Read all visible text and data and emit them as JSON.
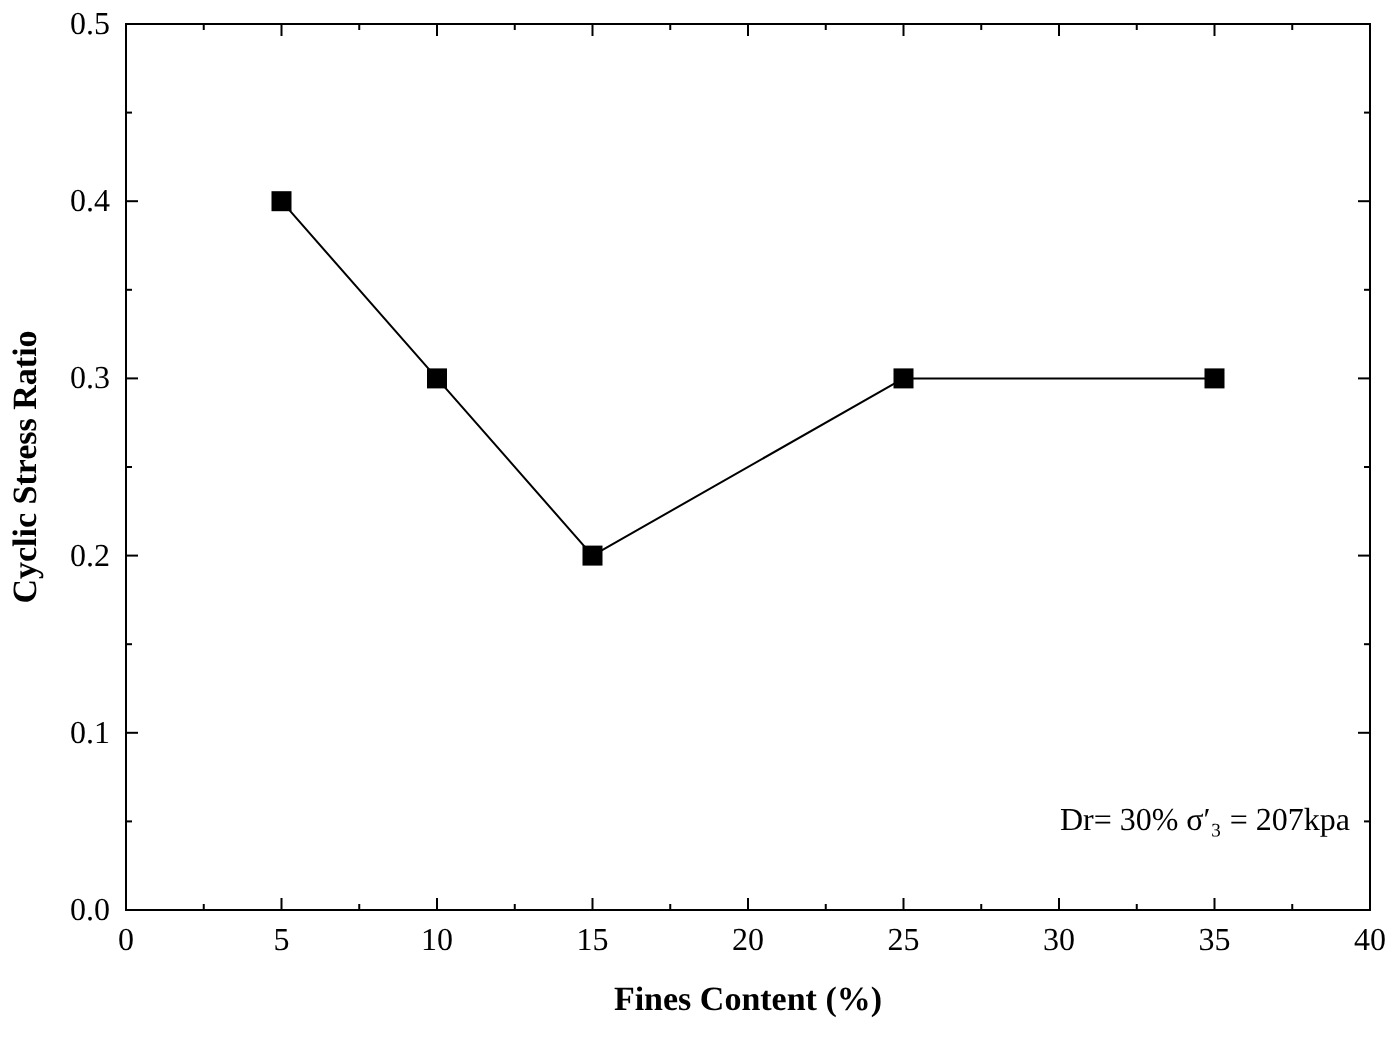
{
  "chart_data": {
    "type": "line",
    "xlabel": "Fines Content (%)",
    "ylabel": "Cyclic Stress Ratio",
    "x": [
      5,
      10,
      15,
      25,
      35
    ],
    "series": [
      {
        "color": "#000000",
        "values": [
          0.4,
          0.3,
          0.2,
          0.3,
          0.3
        ]
      }
    ],
    "xlim": [
      0,
      40
    ],
    "ylim": [
      0,
      0.5
    ],
    "xticks": [
      0,
      {
        "value": 2.5,
        "label": null
      },
      5,
      {
        "value": 7.5,
        "label": null
      },
      10,
      {
        "value": 12.5,
        "label": null
      },
      15,
      {
        "value": 17.5,
        "label": null
      },
      20,
      {
        "value": 22.5,
        "label": null
      },
      25,
      {
        "value": 27.5,
        "label": null
      },
      30,
      {
        "value": 32.5,
        "label": null
      },
      35,
      {
        "value": 37.5,
        "label": null
      },
      40
    ],
    "yticks": [
      {
        "value": 0,
        "label": "0.0"
      },
      {
        "value": 0.05,
        "label": null
      },
      {
        "value": 0.1,
        "label": "0.1"
      },
      {
        "value": 0.15,
        "label": null
      },
      {
        "value": 0.2,
        "label": "0.2"
      },
      {
        "value": 0.25,
        "label": null
      },
      {
        "value": 0.3,
        "label": "0.3"
      },
      {
        "value": 0.35,
        "label": null
      },
      {
        "value": 0.4,
        "label": "0.4"
      },
      {
        "value": 0.45,
        "label": null
      },
      {
        "value": 0.5,
        "label": "0.5"
      }
    ],
    "marker": "square",
    "line_style": "solid",
    "grid": false,
    "annotations": [
      "Dr= 30% σ′₃ = 207kpa"
    ]
  }
}
